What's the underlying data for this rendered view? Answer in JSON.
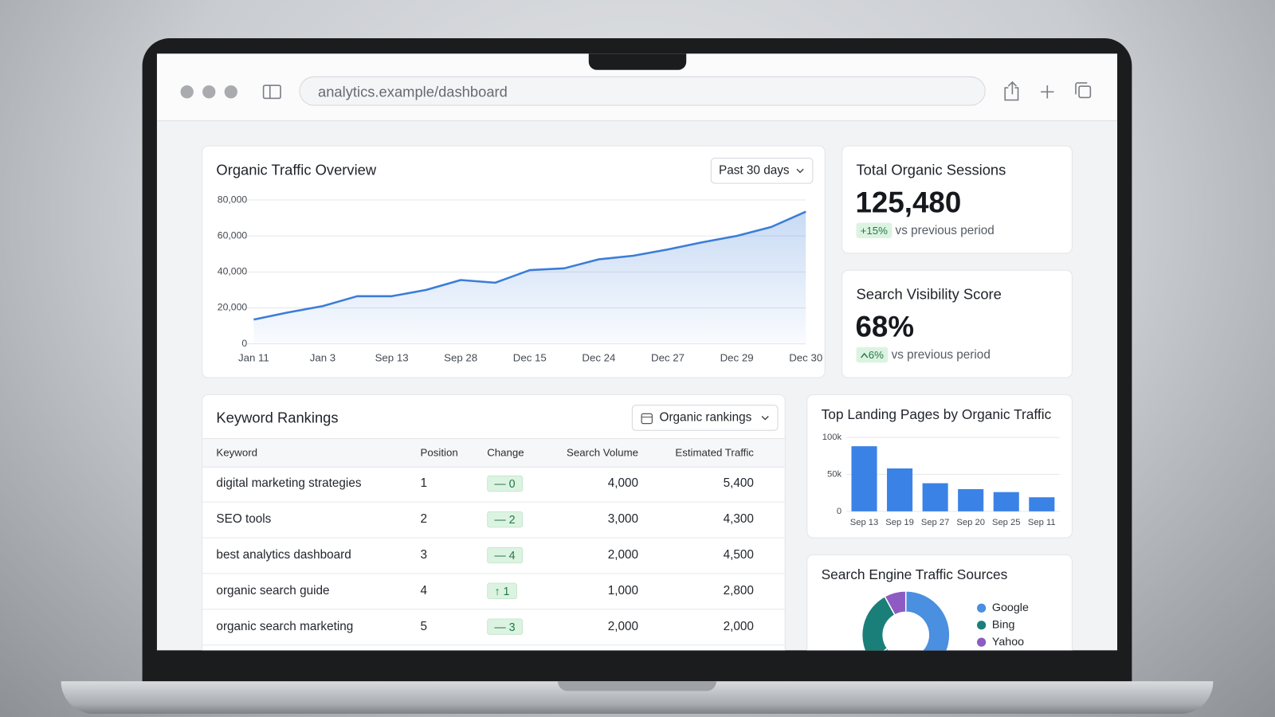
{
  "browser": {
    "url": "analytics.example/dashboard"
  },
  "traffic": {
    "title": "Organic Traffic Overview",
    "range": "Past 30 days",
    "chart_data": {
      "type": "line",
      "categories": [
        "Jan 11",
        null,
        "Jan 3",
        null,
        "Sep 13",
        null,
        "Sep 28",
        null,
        "Dec 15",
        null,
        "Dec 24",
        null,
        "Dec 27",
        null,
        "Dec 29",
        null,
        "Dec 30"
      ],
      "values": [
        13500,
        17500,
        21000,
        26500,
        26500,
        30000,
        35500,
        34000,
        41000,
        42000,
        47000,
        49000,
        52500,
        56500,
        60000,
        65000,
        73500
      ],
      "color": "#3b7dd8",
      "ylim": [
        0,
        80000
      ],
      "yticks": [
        0,
        {
          "value": 20000,
          "label": "20,000"
        },
        {
          "value": 40000,
          "label": "40,000"
        },
        {
          "value": 60000,
          "label": "60,000"
        },
        {
          "value": 80000,
          "label": "80,000"
        }
      ],
      "grid": true
    }
  },
  "sessions": {
    "title": "Total Organic Sessions",
    "value": "125,480",
    "change": "+15%",
    "note": "vs previous period"
  },
  "visibility": {
    "title": "Search Visibility Score",
    "value": "68%",
    "change": "6%",
    "note": "vs previous period"
  },
  "keywords": {
    "title": "Keyword Rankings",
    "filter": "Organic rankings",
    "columns": [
      "Keyword",
      "Position",
      "Change",
      "Search Volume",
      "Estimated Traffic"
    ],
    "rows": [
      [
        "digital marketing strategies",
        "1",
        "— 0",
        "4,000",
        "5,400"
      ],
      [
        "SEO tools",
        "2",
        "— 2",
        "3,000",
        "4,300"
      ],
      [
        "best analytics dashboard",
        "3",
        "— 4",
        "2,000",
        "4,500"
      ],
      [
        "organic search guide",
        "4",
        "↑ 1",
        "1,000",
        "2,800"
      ],
      [
        "organic search marketing",
        "5",
        "— 3",
        "2,000",
        "2,000"
      ]
    ]
  },
  "landing": {
    "chart_data": {
      "type": "bar",
      "title": "Top Landing Pages by Organic Traffic",
      "categories": [
        "Sep 13",
        "Sep 19",
        "Sep 27",
        "Sep 20",
        "Sep 25",
        "Sep 11"
      ],
      "values": [
        88000,
        58000,
        38000,
        30000,
        26000,
        19000
      ],
      "color": "#3b82e6",
      "ylim": [
        0,
        100000
      ],
      "yticks": [
        0,
        {
          "value": 50000,
          "label": "50k"
        },
        {
          "value": 100000,
          "label": "100k"
        }
      ],
      "grid": true
    }
  },
  "sources": {
    "chart_data": {
      "type": "pie",
      "title": "Search Engine Traffic Sources",
      "categories": [
        "Google",
        "Bing",
        "Yahoo"
      ],
      "values": [
        65,
        27,
        8
      ],
      "colors": [
        "#4a8fe0",
        "#1b7f79",
        "#8e5bc4"
      ],
      "donut": true
    }
  }
}
